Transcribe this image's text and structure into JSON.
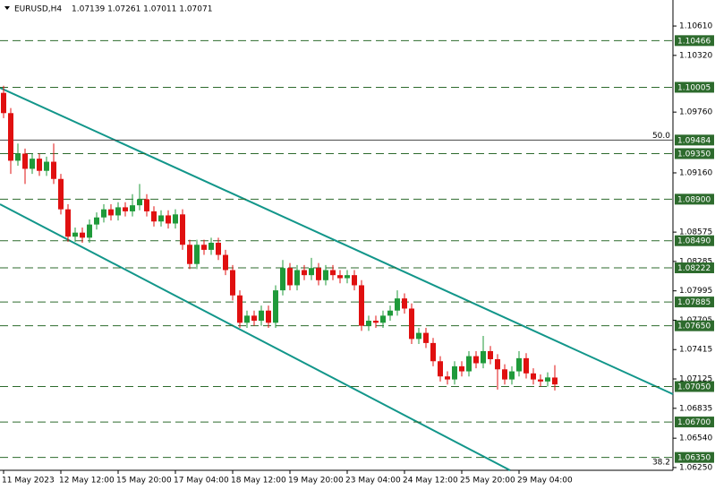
{
  "chart_data": {
    "type": "candlestick",
    "title": "EURUSD,H4",
    "subtitle": "1.07139 1.07261 1.07011 1.07071",
    "up_color": "#1f9a3a",
    "down_color": "#e01010",
    "level_color": "#2d6b2d",
    "open": [
      1.0995,
      1.0975,
      1.0928,
      1.0935,
      1.092,
      1.093,
      1.0918,
      1.0927,
      1.091,
      1.088,
      1.0853,
      1.0857,
      1.0852,
      1.0865,
      1.0872,
      1.088,
      1.0874,
      1.0882,
      1.0878,
      1.0884,
      1.089,
      1.0878,
      1.0868,
      1.0874,
      1.0866,
      1.0875,
      1.0845,
      1.0826,
      1.0845,
      1.084,
      1.0847,
      1.0835,
      1.082,
      1.0795,
      1.0768,
      1.0775,
      1.077,
      1.078,
      1.0768,
      1.08,
      1.0822,
      1.0805,
      1.082,
      1.0815,
      1.0822,
      1.081,
      1.082,
      1.0815,
      1.0812,
      1.0815,
      1.0805,
      1.0765,
      1.077,
      1.0768,
      1.0775,
      1.078,
      1.0792,
      1.0782,
      1.0752,
      1.0758,
      1.0748,
      1.073,
      1.0715,
      1.0712,
      1.0725,
      1.072,
      1.0735,
      1.0728,
      1.074,
      1.0732,
      1.0722,
      1.0712,
      1.072,
      1.0733,
      1.0718,
      1.0712,
      1.071,
      1.07139
    ],
    "high": [
      1.1002,
      1.098,
      1.0945,
      1.094,
      1.0935,
      1.0935,
      1.0932,
      1.0945,
      1.0915,
      1.0885,
      1.0862,
      1.0862,
      1.087,
      1.0877,
      1.0885,
      1.0885,
      1.0887,
      1.0887,
      1.0895,
      1.0905,
      1.0895,
      1.0883,
      1.0879,
      1.0879,
      1.088,
      1.088,
      1.085,
      1.085,
      1.085,
      1.0852,
      1.0852,
      1.084,
      1.0825,
      1.08,
      1.078,
      1.078,
      1.0785,
      1.0785,
      1.0805,
      1.083,
      1.0827,
      1.0825,
      1.0825,
      1.0832,
      1.0827,
      1.0825,
      1.0825,
      1.082,
      1.082,
      1.082,
      1.081,
      1.0775,
      1.0775,
      1.078,
      1.0785,
      1.08,
      1.0797,
      1.0787,
      1.0763,
      1.0763,
      1.0753,
      1.0735,
      1.072,
      1.073,
      1.073,
      1.074,
      1.074,
      1.0755,
      1.0745,
      1.0737,
      1.0727,
      1.0725,
      1.074,
      1.0738,
      1.0723,
      1.0717,
      1.0719,
      1.07261
    ],
    "low": [
      1.097,
      1.0915,
      1.0923,
      1.0905,
      1.0915,
      1.0913,
      1.0913,
      1.0905,
      1.0875,
      1.0848,
      1.0848,
      1.0847,
      1.0847,
      1.086,
      1.0867,
      1.0869,
      1.0869,
      1.0873,
      1.0873,
      1.0879,
      1.0873,
      1.0863,
      1.0863,
      1.0861,
      1.0861,
      1.084,
      1.0821,
      1.0821,
      1.0835,
      1.0835,
      1.083,
      1.0815,
      1.079,
      1.0763,
      1.0763,
      1.0765,
      1.0765,
      1.0763,
      1.0763,
      1.0795,
      1.08,
      1.08,
      1.081,
      1.081,
      1.0805,
      1.0805,
      1.081,
      1.0807,
      1.0807,
      1.08,
      1.076,
      1.076,
      1.0763,
      1.0763,
      1.077,
      1.0775,
      1.0777,
      1.0747,
      1.0747,
      1.0743,
      1.0725,
      1.071,
      1.0707,
      1.0707,
      1.0715,
      1.0715,
      1.0723,
      1.0723,
      1.0727,
      1.0702,
      1.0707,
      1.0707,
      1.0715,
      1.0713,
      1.0707,
      1.0705,
      1.0705,
      1.07011
    ],
    "close": [
      1.0975,
      1.0928,
      1.0935,
      1.092,
      1.093,
      1.0918,
      1.0927,
      1.091,
      1.088,
      1.0853,
      1.0857,
      1.0852,
      1.0865,
      1.0872,
      1.088,
      1.0874,
      1.0882,
      1.0878,
      1.0884,
      1.089,
      1.0878,
      1.0868,
      1.0874,
      1.0866,
      1.0875,
      1.0845,
      1.0826,
      1.0845,
      1.084,
      1.0847,
      1.0835,
      1.082,
      1.0795,
      1.0768,
      1.0775,
      1.077,
      1.078,
      1.0768,
      1.08,
      1.0822,
      1.0805,
      1.082,
      1.0815,
      1.0822,
      1.081,
      1.082,
      1.0815,
      1.0812,
      1.0815,
      1.0805,
      1.0765,
      1.077,
      1.0768,
      1.0775,
      1.078,
      1.0792,
      1.0782,
      1.0752,
      1.0758,
      1.0748,
      1.073,
      1.0715,
      1.0712,
      1.0725,
      1.072,
      1.0735,
      1.0728,
      1.074,
      1.0732,
      1.0722,
      1.0712,
      1.072,
      1.0733,
      1.0718,
      1.0712,
      1.071,
      1.0714,
      1.07071
    ],
    "xticks": [
      "11 May 2023",
      "12 May 12:00",
      "15 May 20:00",
      "17 May 04:00",
      "18 May 12:00",
      "19 May 20:00",
      "23 May 04:00",
      "24 May 12:00",
      "25 May 20:00",
      "29 May 04:00"
    ],
    "ylim": [
      1.06223,
      1.10867
    ],
    "yticks": [
      {
        "value": 1.1061,
        "label": "1.10610"
      },
      {
        "value": 1.1032,
        "label": "1.10320"
      },
      {
        "value": 1.0976,
        "label": "1.09760"
      },
      {
        "value": 1.0916,
        "label": "1.09160"
      },
      {
        "value": 1.08575,
        "label": "1.08575"
      },
      {
        "value": 1.08285,
        "label": "1.08285"
      },
      {
        "value": 1.07995,
        "label": "1.07995"
      },
      {
        "value": 1.07705,
        "label": "1.07705"
      },
      {
        "value": 1.07415,
        "label": "1.07415"
      },
      {
        "value": 1.07125,
        "label": "1.07125"
      },
      {
        "value": 1.06835,
        "label": "1.06835"
      },
      {
        "value": 1.0654,
        "label": "1.06540"
      },
      {
        "value": 1.0625,
        "label": "1.06250"
      }
    ],
    "levels": [
      1.10466,
      1.10005,
      1.09484,
      {
        "value": 1.0935,
        "label": "1.09350"
      },
      {
        "value": 1.089,
        "label": "1.08900"
      },
      {
        "value": 1.0849,
        "label": "1.08490"
      },
      1.08222,
      1.07885,
      {
        "value": 1.0765,
        "label": "1.07650"
      },
      {
        "value": 1.0705,
        "label": "1.07050"
      },
      {
        "value": 1.067,
        "label": "1.06700"
      },
      {
        "value": 1.0635,
        "label": "1.06350"
      }
    ],
    "fib_levels": [
      {
        "value": 1.09484,
        "label": "50.0"
      },
      {
        "value": 1.0625,
        "label": "38.2"
      }
    ]
  }
}
